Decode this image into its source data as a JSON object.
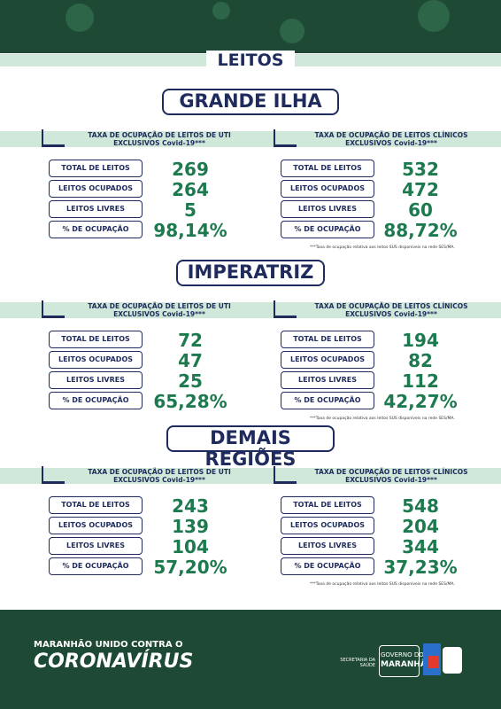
{
  "header": {
    "title": "LEITOS"
  },
  "regions": [
    {
      "title": "GRANDE ILHA",
      "panels": [
        {
          "title": [
            "TAXA DE OCUPAÇÃO DE LEITOS DE UTI",
            "EXCLUSIVOS Covid-19***"
          ],
          "rows": [
            {
              "label": "TOTAL DE LEITOS",
              "value": "269"
            },
            {
              "label": "LEITOS OCUPADOS",
              "value": "264"
            },
            {
              "label": "LEITOS LIVRES",
              "value": "5"
            },
            {
              "label": "% DE OCUPAÇÃO",
              "value": "98,14%"
            }
          ]
        },
        {
          "title": [
            "TAXA DE OCUPAÇÃO DE LEITOS CLÍNICOS",
            "EXCLUSIVOS Covid-19***"
          ],
          "rows": [
            {
              "label": "TOTAL DE LEITOS",
              "value": "532"
            },
            {
              "label": "LEITOS OCUPADOS",
              "value": "472"
            },
            {
              "label": "LEITOS LIVRES",
              "value": "60"
            },
            {
              "label": "% DE OCUPAÇÃO",
              "value": "88,72%"
            }
          ]
        }
      ],
      "note": "***Taxa de ocupação relativa aos leitos SUS disponíveis na rede SES/MA."
    },
    {
      "title": "IMPERATRIZ",
      "panels": [
        {
          "title": [
            "TAXA DE OCUPAÇÃO DE LEITOS DE UTI",
            "EXCLUSIVOS Covid-19***"
          ],
          "rows": [
            {
              "label": "TOTAL DE LEITOS",
              "value": "72"
            },
            {
              "label": "LEITOS OCUPADOS",
              "value": "47"
            },
            {
              "label": "LEITOS LIVRES",
              "value": "25"
            },
            {
              "label": "% DE OCUPAÇÃO",
              "value": "65,28%"
            }
          ]
        },
        {
          "title": [
            "TAXA DE OCUPAÇÃO DE LEITOS CLÍNICOS",
            "EXCLUSIVOS Covid-19***"
          ],
          "rows": [
            {
              "label": "TOTAL DE LEITOS",
              "value": "194"
            },
            {
              "label": "LEITOS OCUPADOS",
              "value": "82"
            },
            {
              "label": "LEITOS LIVRES",
              "value": "112"
            },
            {
              "label": "% DE OCUPAÇÃO",
              "value": "42,27%"
            }
          ]
        }
      ],
      "note": "***Taxa de ocupação relativa aos leitos SUS disponíveis na rede SES/MA."
    },
    {
      "title": "DEMAIS REGIÕES",
      "panels": [
        {
          "title": [
            "TAXA DE OCUPAÇÃO DE LEITOS DE UTI",
            "EXCLUSIVOS Covid-19***"
          ],
          "rows": [
            {
              "label": "TOTAL DE LEITOS",
              "value": "243"
            },
            {
              "label": "LEITOS OCUPADOS",
              "value": "139"
            },
            {
              "label": "LEITOS LIVRES",
              "value": "104"
            },
            {
              "label": "% DE OCUPAÇÃO",
              "value": "57,20%"
            }
          ]
        },
        {
          "title": [
            "TAXA DE OCUPAÇÃO DE LEITOS CLÍNICOS",
            "EXCLUSIVOS Covid-19***"
          ],
          "rows": [
            {
              "label": "TOTAL DE LEITOS",
              "value": "548"
            },
            {
              "label": "LEITOS OCUPADOS",
              "value": "204"
            },
            {
              "label": "LEITOS LIVRES",
              "value": "344"
            },
            {
              "label": "% DE OCUPAÇÃO",
              "value": "37,23%"
            }
          ]
        }
      ],
      "note": "***Taxa de ocupação relativa aos leitos SUS disponíveis na rede SES/MA."
    }
  ],
  "footer": {
    "slogan": "MARANHÃO UNIDO CONTRA O",
    "campaign": "CORONAVÍRUS",
    "secretaria": "SECRETARIA DA SAÚDE",
    "governo": [
      "GOVERNO DO",
      "MARANHÃO"
    ]
  }
}
